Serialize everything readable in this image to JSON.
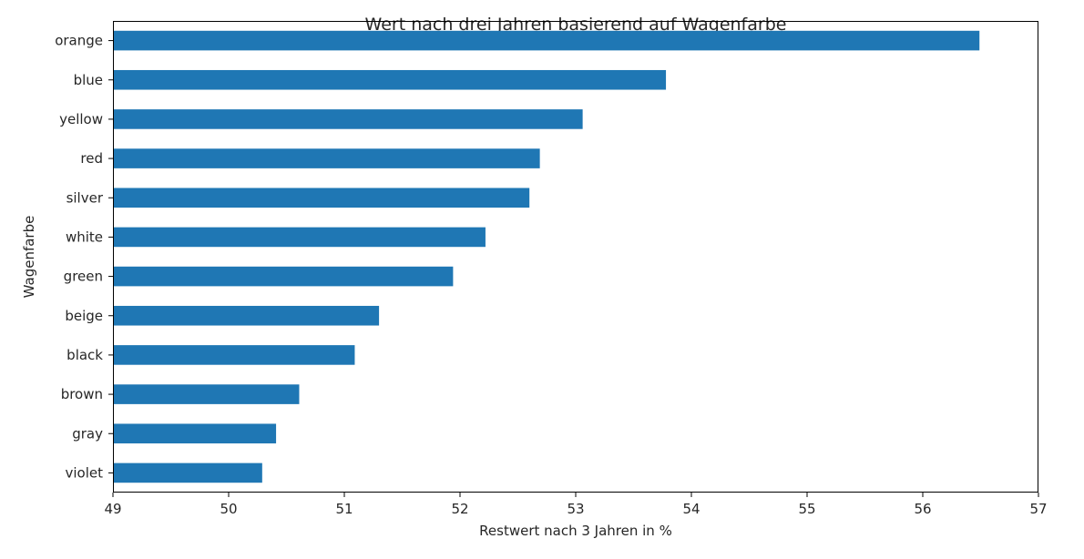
{
  "chart_data": {
    "type": "bar",
    "orientation": "horizontal",
    "title": "Wert nach drei Jahren basierend auf Wagenfarbe",
    "xlabel": "Restwert nach 3 Jahren in %",
    "ylabel": "Wagenfarbe",
    "xlim": [
      49,
      57
    ],
    "xticks": [
      "49",
      "50",
      "51",
      "52",
      "53",
      "54",
      "55",
      "56",
      "57"
    ],
    "categories": [
      "orange",
      "blue",
      "yellow",
      "red",
      "silver",
      "white",
      "green",
      "beige",
      "black",
      "brown",
      "gray",
      "violet"
    ],
    "values": [
      56.49,
      53.78,
      53.06,
      52.69,
      52.6,
      52.22,
      51.94,
      51.3,
      51.09,
      50.61,
      50.41,
      50.29
    ],
    "bar_color": "#1f77b4",
    "grid": false,
    "legend": false
  }
}
